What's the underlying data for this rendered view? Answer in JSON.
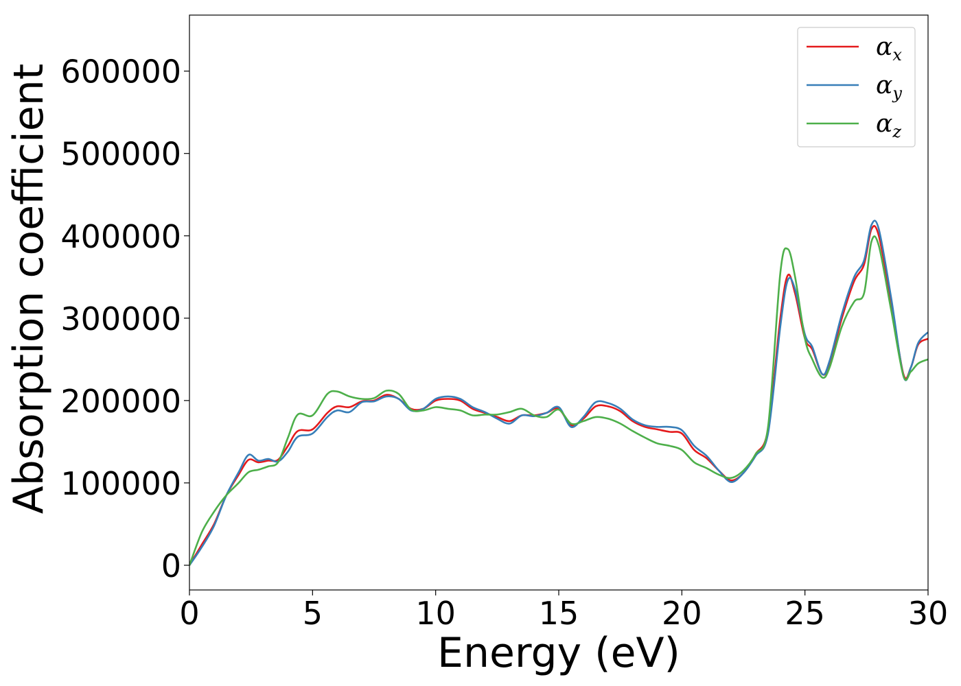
{
  "chart_data": {
    "type": "line",
    "xlabel": "Energy (eV)",
    "ylabel": "Absorption coefficient",
    "xlim": [
      0,
      30
    ],
    "ylim": [
      -30000,
      668000
    ],
    "xticks": [
      0,
      5,
      10,
      15,
      20,
      25,
      30
    ],
    "xtick_labels": [
      "0",
      "5",
      "10",
      "15",
      "20",
      "25",
      "30"
    ],
    "yticks": [
      0,
      100000,
      200000,
      300000,
      400000,
      500000,
      600000
    ],
    "ytick_labels": [
      "0",
      "100000",
      "200000",
      "300000",
      "400000",
      "500000",
      "600000"
    ],
    "grid": false,
    "legend_position": "top-right",
    "series": [
      {
        "name": "α_x",
        "legend_base": "α",
        "legend_sub": "x",
        "color": "#e41a1c",
        "x": [
          0,
          0.5,
          1.0,
          1.5,
          2.0,
          2.4,
          2.8,
          3.2,
          3.6,
          4.0,
          4.4,
          5.0,
          5.6,
          6.0,
          6.5,
          7.0,
          7.5,
          8.0,
          8.5,
          9.0,
          9.5,
          10.0,
          10.5,
          11.0,
          11.5,
          12.0,
          12.5,
          13.0,
          13.5,
          14.0,
          14.5,
          15.0,
          15.5,
          16.0,
          16.5,
          17.0,
          17.5,
          18.0,
          18.5,
          19.0,
          19.5,
          20.0,
          20.5,
          21.0,
          21.5,
          22.0,
          22.5,
          23.0,
          23.5,
          24.0,
          24.3,
          24.6,
          25.0,
          25.3,
          25.7,
          26.0,
          26.5,
          27.0,
          27.4,
          27.7,
          28.0,
          28.5,
          29.0,
          29.3,
          29.6,
          30.0
        ],
        "values": [
          0,
          25000,
          50000,
          85000,
          110000,
          128000,
          125000,
          127000,
          128000,
          145000,
          163000,
          165000,
          185000,
          193000,
          192000,
          199000,
          200000,
          207000,
          202000,
          190000,
          190000,
          200000,
          202000,
          200000,
          190000,
          185000,
          180000,
          175000,
          182000,
          182000,
          185000,
          190000,
          170000,
          178000,
          193000,
          193000,
          187000,
          175000,
          168000,
          165000,
          162000,
          160000,
          140000,
          130000,
          115000,
          103000,
          112000,
          135000,
          165000,
          300000,
          352000,
          330000,
          275000,
          262000,
          232000,
          245000,
          300000,
          345000,
          365000,
          408000,
          400000,
          320000,
          232000,
          240000,
          268000,
          275000
        ]
      },
      {
        "name": "α_y",
        "legend_base": "α",
        "legend_sub": "y",
        "color": "#377eb8",
        "x": [
          0,
          0.5,
          1.0,
          1.5,
          2.0,
          2.4,
          2.8,
          3.2,
          3.6,
          4.0,
          4.4,
          5.0,
          5.6,
          6.0,
          6.5,
          7.0,
          7.5,
          8.0,
          8.5,
          9.0,
          9.5,
          10.0,
          10.5,
          11.0,
          11.5,
          12.0,
          12.5,
          13.0,
          13.5,
          14.0,
          14.5,
          15.0,
          15.5,
          16.0,
          16.5,
          17.0,
          17.5,
          18.0,
          18.5,
          19.0,
          19.5,
          20.0,
          20.5,
          21.0,
          21.5,
          22.0,
          22.5,
          23.0,
          23.5,
          24.0,
          24.3,
          24.6,
          25.0,
          25.3,
          25.7,
          26.0,
          26.5,
          27.0,
          27.4,
          27.7,
          28.0,
          28.5,
          29.0,
          29.3,
          29.6,
          30.0
        ],
        "values": [
          0,
          22000,
          48000,
          85000,
          113000,
          134000,
          127000,
          129000,
          126000,
          138000,
          156000,
          160000,
          180000,
          188000,
          186000,
          198000,
          199000,
          205000,
          202000,
          188000,
          190000,
          202000,
          205000,
          202000,
          192000,
          186000,
          178000,
          172000,
          182000,
          181000,
          185000,
          192000,
          168000,
          180000,
          198000,
          197000,
          190000,
          177000,
          170000,
          168000,
          168000,
          164000,
          145000,
          133000,
          115000,
          101000,
          112000,
          133000,
          160000,
          290000,
          346000,
          335000,
          280000,
          265000,
          232000,
          248000,
          305000,
          350000,
          370000,
          413000,
          408000,
          325000,
          230000,
          240000,
          270000,
          283000
        ]
      },
      {
        "name": "α_z",
        "legend_base": "α",
        "legend_sub": "z",
        "color": "#4daf4a",
        "x": [
          0,
          0.5,
          1.0,
          1.5,
          2.0,
          2.4,
          2.8,
          3.2,
          3.6,
          4.0,
          4.4,
          5.0,
          5.6,
          6.0,
          6.5,
          7.0,
          7.5,
          8.0,
          8.5,
          9.0,
          9.5,
          10.0,
          10.5,
          11.0,
          11.5,
          12.0,
          12.5,
          13.0,
          13.5,
          14.0,
          14.5,
          15.0,
          15.5,
          16.0,
          16.5,
          17.0,
          17.5,
          18.0,
          18.5,
          19.0,
          19.5,
          20.0,
          20.5,
          21.0,
          21.5,
          22.0,
          22.5,
          23.0,
          23.5,
          24.0,
          24.3,
          24.6,
          25.0,
          25.3,
          25.7,
          26.0,
          26.5,
          27.0,
          27.4,
          27.7,
          28.0,
          28.5,
          29.0,
          29.3,
          29.6,
          30.0
        ],
        "values": [
          0,
          40000,
          65000,
          85000,
          100000,
          113000,
          116000,
          120000,
          125000,
          155000,
          183000,
          182000,
          208000,
          211000,
          205000,
          202000,
          203000,
          212000,
          208000,
          189000,
          188000,
          192000,
          190000,
          188000,
          182000,
          183000,
          183000,
          186000,
          190000,
          182000,
          180000,
          189000,
          172000,
          175000,
          180000,
          178000,
          172000,
          163000,
          155000,
          148000,
          145000,
          140000,
          125000,
          118000,
          110000,
          106000,
          115000,
          135000,
          168000,
          355000,
          384000,
          350000,
          275000,
          250000,
          228000,
          240000,
          290000,
          320000,
          330000,
          393000,
          388000,
          310000,
          230000,
          235000,
          245000,
          250000
        ]
      }
    ]
  }
}
